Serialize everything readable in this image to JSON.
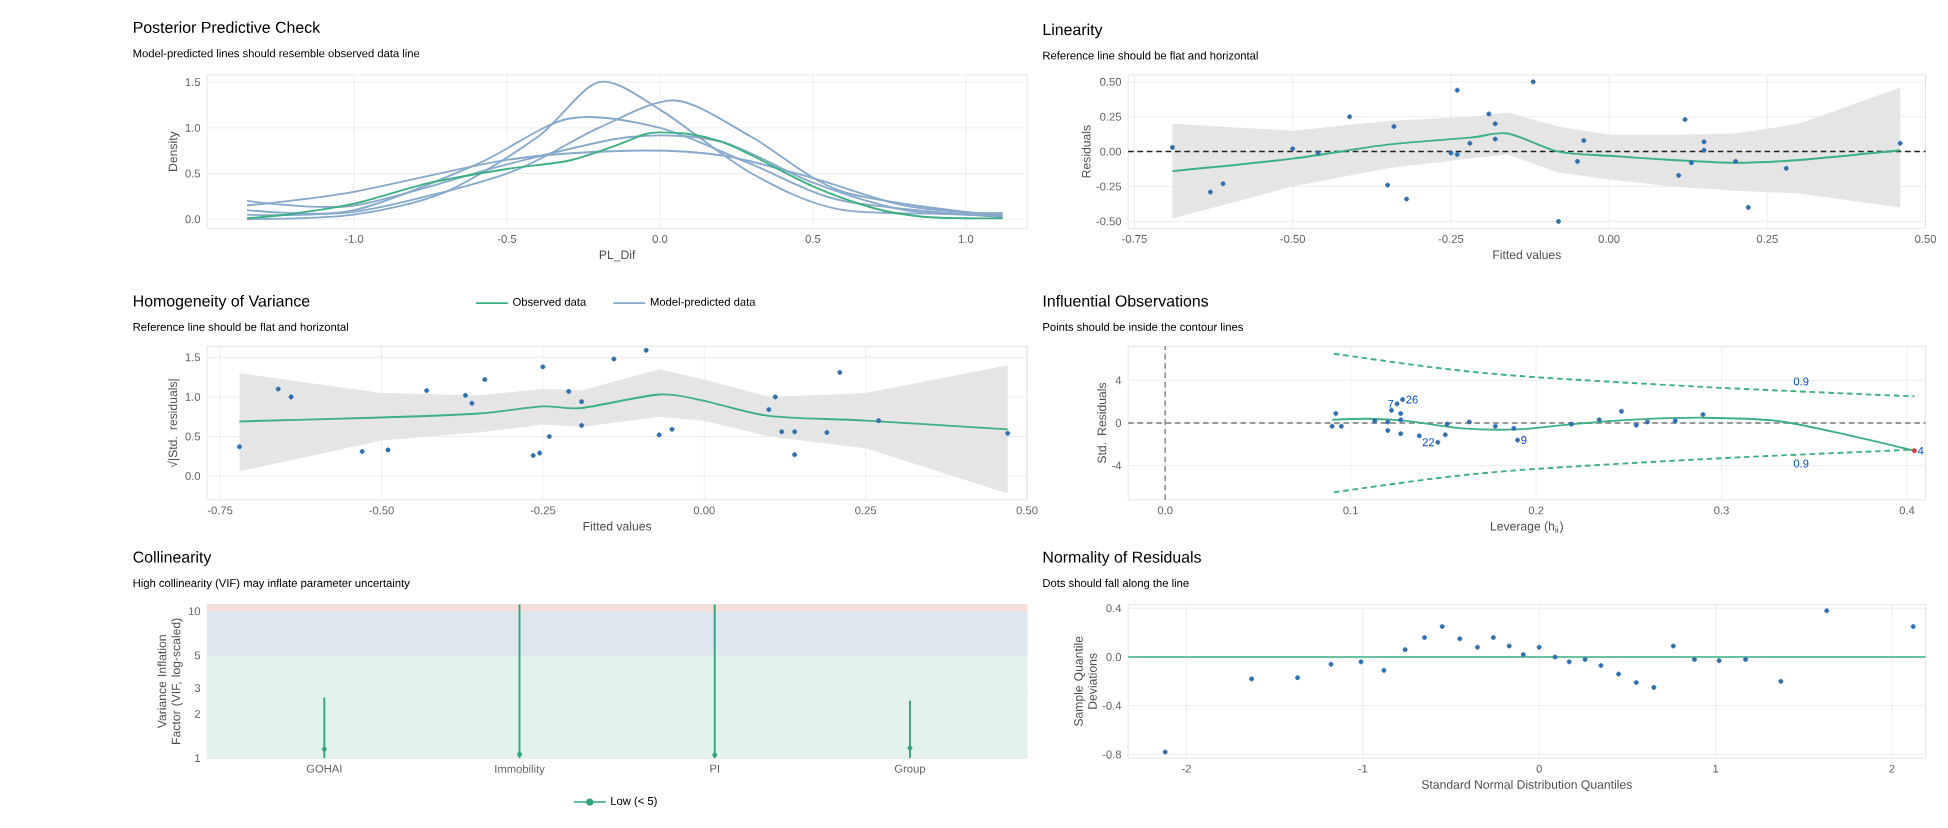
{
  "chart_data": [
    {
      "type": "line",
      "title": "Posterior Predictive Check",
      "subtitle": "Model-predicted lines should resemble observed data line",
      "xlabel": "PL_Dif",
      "ylabel": "Density",
      "xlim": [
        -1.48,
        1.2
      ],
      "ylim": [
        -0.1,
        1.58
      ],
      "xticks": [
        {
          "value": -1,
          "label": "-1.0"
        },
        {
          "value": -0.5,
          "label": "-0.5"
        },
        {
          "value": 0,
          "label": "0.0"
        },
        {
          "value": 0.5,
          "label": "0.5"
        },
        {
          "value": 1,
          "label": "1.0"
        }
      ],
      "yticks": [
        {
          "value": 0,
          "label": "0.0"
        },
        {
          "value": 0.5,
          "label": "0.5"
        },
        {
          "value": 1,
          "label": "1.0"
        },
        {
          "value": 1.5,
          "label": "1.5"
        }
      ],
      "grid": true,
      "legend": "bottom",
      "series": [
        {
          "name": "Observed data",
          "color": "#3cb083",
          "x": [
            -1.35,
            -1.2,
            -1.0,
            -0.75,
            -0.5,
            -0.3,
            -0.15,
            -0.05,
            0,
            0.1,
            0.2,
            0.3,
            0.5,
            0.7,
            0.85,
            1.0,
            1.12
          ],
          "values": [
            0.01,
            0.06,
            0.17,
            0.4,
            0.55,
            0.64,
            0.8,
            0.93,
            0.95,
            0.93,
            0.85,
            0.7,
            0.36,
            0.12,
            0.03,
            0.01,
            0.01
          ]
        },
        {
          "name": "Model-predicted data",
          "color": "#86a9cc",
          "x": [
            -1.35,
            -1.0,
            -0.7,
            -0.4,
            -0.2,
            0,
            0.3,
            0.6,
            1.12
          ],
          "values": [
            0.0,
            0.05,
            0.3,
            0.9,
            1.5,
            1.2,
            0.5,
            0.1,
            0.07
          ]
        },
        {
          "color": "#86a9cc",
          "x": [
            -1.35,
            -1.0,
            -0.5,
            -0.1,
            0.2,
            0.5,
            0.8,
            1.12
          ],
          "values": [
            0.15,
            0.3,
            0.65,
            0.75,
            0.7,
            0.45,
            0.15,
            0.05
          ]
        },
        {
          "color": "#86a9cc",
          "x": [
            -1.35,
            -1.0,
            -0.6,
            -0.3,
            0,
            0.3,
            0.6,
            1.12
          ],
          "values": [
            0.05,
            0.1,
            0.6,
            1.1,
            1.0,
            0.6,
            0.2,
            0.02
          ]
        },
        {
          "color": "#86a9cc",
          "x": [
            -1.35,
            -1.0,
            -0.5,
            -0.2,
            0.05,
            0.3,
            0.6,
            1.12
          ],
          "values": [
            0.1,
            0.08,
            0.5,
            1.0,
            1.3,
            0.9,
            0.3,
            0.03
          ]
        },
        {
          "color": "#86a9cc",
          "x": [
            -1.35,
            -1.0,
            -0.5,
            -0.1,
            0.2,
            0.5,
            0.8,
            1.12
          ],
          "values": [
            0.2,
            0.15,
            0.6,
            0.9,
            0.85,
            0.4,
            0.1,
            0.04
          ]
        }
      ]
    },
    {
      "type": "scatter",
      "title": "Linearity",
      "subtitle": "Reference line should be flat and horizontal",
      "xlabel": "Fitted values",
      "ylabel": "Residuals",
      "xlim": [
        -0.76,
        0.5
      ],
      "ylim": [
        -0.55,
        0.55
      ],
      "xticks": [
        {
          "value": -0.75,
          "label": "-0.75"
        },
        {
          "value": -0.5,
          "label": "-0.50"
        },
        {
          "value": -0.25,
          "label": "-0.25"
        },
        {
          "value": 0,
          "label": "0.00"
        },
        {
          "value": 0.25,
          "label": "0.25"
        },
        {
          "value": 0.5,
          "label": "0.50"
        }
      ],
      "yticks": [
        {
          "value": -0.5,
          "label": "-0.50"
        },
        {
          "value": -0.25,
          "label": "-0.25"
        },
        {
          "value": 0,
          "label": "0.00"
        },
        {
          "value": 0.25,
          "label": "0.25"
        },
        {
          "value": 0.5,
          "label": "0.50"
        }
      ],
      "grid": true,
      "marker": "circle",
      "ref_lines": [
        {
          "axis": "y",
          "value": 0,
          "color": "#222222",
          "line_style": "dashed"
        }
      ],
      "series": [
        {
          "type": "line",
          "marker": "none",
          "color": "#3cb083",
          "x": [
            -0.69,
            -0.5,
            -0.35,
            -0.22,
            -0.16,
            -0.08,
            0.0,
            0.1,
            0.2,
            0.3,
            0.46
          ],
          "values": [
            -0.14,
            -0.05,
            0.05,
            0.1,
            0.13,
            0.0,
            -0.03,
            -0.06,
            -0.08,
            -0.06,
            0.01
          ],
          "lower": [
            -0.48,
            -0.25,
            -0.12,
            -0.05,
            -0.02,
            -0.15,
            -0.2,
            -0.25,
            -0.28,
            -0.3,
            -0.4
          ],
          "upper": [
            0.2,
            0.15,
            0.22,
            0.25,
            0.28,
            0.18,
            0.12,
            0.12,
            0.13,
            0.2,
            0.46
          ]
        },
        {
          "color": "#2f6fb0",
          "x": [
            -0.69,
            -0.63,
            -0.61,
            -0.5,
            -0.46,
            -0.41,
            -0.35,
            -0.34,
            -0.32,
            -0.25,
            -0.24,
            -0.24,
            -0.22,
            -0.19,
            -0.18,
            -0.18,
            -0.12,
            -0.08,
            -0.05,
            -0.04,
            0.11,
            0.12,
            0.13,
            0.15,
            0.15,
            0.2,
            0.22,
            0.28,
            0.46
          ],
          "values": [
            0.03,
            -0.29,
            -0.23,
            0.02,
            -0.01,
            0.25,
            -0.24,
            0.18,
            -0.34,
            -0.01,
            -0.02,
            0.44,
            0.06,
            0.27,
            0.2,
            0.09,
            0.5,
            -0.5,
            -0.07,
            0.08,
            -0.17,
            0.23,
            -0.08,
            0.07,
            0.01,
            -0.07,
            -0.4,
            -0.12,
            0.06
          ]
        }
      ]
    },
    {
      "type": "scatter",
      "title": "Homogeneity of Variance",
      "subtitle": "Reference line should be flat and horizontal",
      "xlabel": "Fitted values",
      "ylabel": "√|Std. residuals|",
      "xlim": [
        -0.77,
        0.5
      ],
      "ylim": [
        -0.3,
        1.64
      ],
      "xticks": [
        {
          "value": -0.75,
          "label": "-0.75"
        },
        {
          "value": -0.5,
          "label": "-0.50"
        },
        {
          "value": -0.25,
          "label": "-0.25"
        },
        {
          "value": 0,
          "label": "0.00"
        },
        {
          "value": 0.25,
          "label": "0.25"
        },
        {
          "value": 0.5,
          "label": "0.50"
        }
      ],
      "yticks": [
        {
          "value": 0,
          "label": "0.0"
        },
        {
          "value": 0.5,
          "label": "0.5"
        },
        {
          "value": 1,
          "label": "1.0"
        },
        {
          "value": 1.5,
          "label": "1.5"
        }
      ],
      "grid": true,
      "marker": "circle",
      "series": [
        {
          "type": "line",
          "marker": "none",
          "color": "#3cb083",
          "x": [
            -0.72,
            -0.5,
            -0.35,
            -0.25,
            -0.19,
            -0.07,
            0.0,
            0.1,
            0.25,
            0.47
          ],
          "values": [
            0.69,
            0.74,
            0.79,
            0.88,
            0.86,
            1.03,
            0.95,
            0.76,
            0.7,
            0.59
          ],
          "lower": [
            0.06,
            0.45,
            0.55,
            0.65,
            0.62,
            0.75,
            0.7,
            0.5,
            0.35,
            -0.22
          ],
          "upper": [
            1.3,
            1.05,
            1.02,
            1.1,
            1.08,
            1.35,
            1.22,
            1.0,
            1.05,
            1.4
          ]
        },
        {
          "color": "#2f6fb0",
          "x": [
            -0.72,
            -0.66,
            -0.64,
            -0.53,
            -0.49,
            -0.43,
            -0.37,
            -0.36,
            -0.34,
            -0.265,
            -0.255,
            -0.25,
            -0.24,
            -0.21,
            -0.19,
            -0.19,
            -0.14,
            -0.09,
            -0.07,
            -0.05,
            0.1,
            0.11,
            0.12,
            0.14,
            0.14,
            0.19,
            0.21,
            0.27,
            0.47
          ],
          "values": [
            0.37,
            1.1,
            1.0,
            0.31,
            0.33,
            1.08,
            1.02,
            0.92,
            1.22,
            0.26,
            0.29,
            1.38,
            0.5,
            1.07,
            0.94,
            0.64,
            1.48,
            1.59,
            0.52,
            0.59,
            0.84,
            1.0,
            0.56,
            0.56,
            0.27,
            0.55,
            1.31,
            0.7,
            0.54
          ]
        }
      ]
    },
    {
      "type": "scatter",
      "title": "Influential Observations",
      "subtitle": "Points should be inside the contour lines",
      "xlabel": "Leverage (h$_{ii}$)",
      "ylabel": "Std. Residuals",
      "xlim": [
        -0.02,
        0.41
      ],
      "ylim": [
        -7.2,
        7.2
      ],
      "xticks": [
        {
          "value": 0,
          "label": "0.0"
        },
        {
          "value": 0.1,
          "label": "0.1"
        },
        {
          "value": 0.2,
          "label": "0.2"
        },
        {
          "value": 0.3,
          "label": "0.3"
        },
        {
          "value": 0.4,
          "label": "0.4"
        }
      ],
      "yticks": [
        -4,
        0,
        4
      ],
      "grid": true,
      "marker": "circle",
      "ref_lines": [
        {
          "axis": "x",
          "value": 0,
          "color": "#8c8c8c",
          "line_style": "dashed"
        },
        {
          "axis": "y",
          "value": 0,
          "color": "#7a7a7a",
          "line_style": "dashed"
        }
      ],
      "annotations": [
        {
          "text": "7",
          "x": 0.125,
          "y": 1.8
        },
        {
          "text": "26",
          "x": 0.128,
          "y": 2.2
        },
        {
          "text": "22",
          "x": 0.147,
          "y": -1.8
        },
        {
          "text": "9",
          "x": 0.19,
          "y": -1.6
        },
        {
          "text": "4",
          "x": 0.404,
          "y": -2.6
        },
        {
          "text": "0.9",
          "x": 0.337,
          "y": 3.9
        },
        {
          "text": "0.9",
          "x": 0.337,
          "y": -3.8
        }
      ],
      "series": [
        {
          "type": "line",
          "marker": "none",
          "line_style": "dashed",
          "color": "#3cb083",
          "x": [
            0.091,
            0.15,
            0.2,
            0.3,
            0.404
          ],
          "values": [
            6.5,
            5.1,
            4.3,
            3.3,
            2.5
          ]
        },
        {
          "type": "line",
          "marker": "none",
          "line_style": "dashed",
          "color": "#3cb083",
          "x": [
            0.091,
            0.15,
            0.2,
            0.3,
            0.404
          ],
          "values": [
            -6.5,
            -5.1,
            -4.3,
            -3.3,
            -2.5
          ]
        },
        {
          "type": "line",
          "marker": "none",
          "color": "#3cb083",
          "x": [
            0.09,
            0.11,
            0.13,
            0.16,
            0.19,
            0.22,
            0.25,
            0.29,
            0.33,
            0.37,
            0.404
          ],
          "values": [
            0.3,
            0.4,
            0.2,
            -0.5,
            -0.6,
            -0.1,
            0.3,
            0.5,
            0.2,
            -1.2,
            -2.6
          ]
        },
        {
          "color": "#2f6fb0",
          "x": [
            0.09,
            0.092,
            0.095,
            0.113,
            0.12,
            0.12,
            0.122,
            0.125,
            0.127,
            0.127,
            0.127,
            0.128,
            0.137,
            0.147,
            0.151,
            0.152,
            0.164,
            0.178,
            0.188,
            0.19,
            0.219,
            0.234,
            0.246,
            0.254,
            0.26,
            0.275,
            0.29
          ],
          "values": [
            -0.3,
            0.9,
            -0.3,
            0.2,
            0.1,
            -0.7,
            1.2,
            1.8,
            0.3,
            0.9,
            -1.0,
            2.2,
            -1.2,
            -1.8,
            -1.1,
            -0.1,
            0.1,
            -0.3,
            -0.5,
            -1.6,
            -0.1,
            0.3,
            1.1,
            -0.2,
            0.1,
            0.2,
            0.8
          ]
        },
        {
          "color": "#d9383a",
          "x": [
            0.404
          ],
          "values": [
            -2.6
          ]
        }
      ]
    },
    {
      "type": "scatter",
      "title": "Collinearity",
      "subtitle": "High collinearity (VIF) may inflate parameter uncertainty",
      "ylabel": "Variance Inflation Factor (VIF, log-scaled)",
      "categories": [
        "GOHAI",
        "Immobility",
        "PI",
        "Group"
      ],
      "ylim": [
        1,
        11.1
      ],
      "yticks": [
        1,
        2,
        3,
        5,
        10
      ],
      "log": "y",
      "grid": true,
      "marker": "circle",
      "legend": "bottom",
      "bands": [
        {
          "axis": "y",
          "from": 1,
          "to": 5,
          "color": "#e3f2ea"
        },
        {
          "axis": "y",
          "from": 5,
          "to": 10,
          "color": "#dde7f0"
        },
        {
          "axis": "y",
          "from": 10,
          "to": 11.1,
          "color": "#f7dcdc"
        }
      ],
      "series": [
        {
          "name": "Low (< 5)",
          "color": "#2ea57a",
          "values": [
            1.15,
            1.06,
            1.05,
            1.17
          ],
          "errors": [
            [
              1,
              2.59
            ],
            [
              1,
              11.1
            ],
            [
              1,
              11.1
            ],
            [
              1,
              2.46
            ]
          ]
        }
      ]
    },
    {
      "type": "scatter",
      "title": "Normality of Residuals",
      "subtitle": "Dots should fall along the line",
      "xlabel": "Standard Normal Distribution Quantiles",
      "ylabel": "Sample Quantile Deviations",
      "xlim": [
        -2.33,
        2.19
      ],
      "ylim": [
        -0.83,
        0.43
      ],
      "xticks": [
        -2,
        -1,
        0,
        1,
        2
      ],
      "yticks": [
        {
          "value": -0.8,
          "label": "-0.8"
        },
        {
          "value": -0.4,
          "label": "-0.4"
        },
        {
          "value": 0,
          "label": "0.0"
        },
        {
          "value": 0.4,
          "label": "0.4"
        }
      ],
      "grid": true,
      "marker": "circle",
      "ref_lines": [
        {
          "axis": "y",
          "value": 0,
          "color": "#3cb083",
          "line_style": "solid"
        }
      ],
      "series": [
        {
          "color": "#2f6fb0",
          "x": [
            -2.12,
            -1.63,
            -1.37,
            -1.18,
            -1.01,
            -0.88,
            -0.76,
            -0.65,
            -0.55,
            -0.45,
            -0.35,
            -0.26,
            -0.17,
            -0.09,
            0.0,
            0.09,
            0.17,
            0.26,
            0.35,
            0.45,
            0.55,
            0.65,
            0.76,
            0.88,
            1.02,
            1.17,
            1.37,
            1.63,
            2.12
          ],
          "values": [
            -0.78,
            -0.18,
            -0.17,
            -0.06,
            -0.04,
            -0.11,
            0.06,
            0.16,
            0.25,
            0.15,
            0.08,
            0.16,
            0.09,
            0.02,
            0.08,
            0.0,
            -0.04,
            -0.02,
            -0.07,
            -0.14,
            -0.21,
            -0.25,
            0.09,
            -0.02,
            -0.03,
            -0.02,
            -0.2,
            0.38,
            0.25
          ]
        }
      ]
    }
  ]
}
